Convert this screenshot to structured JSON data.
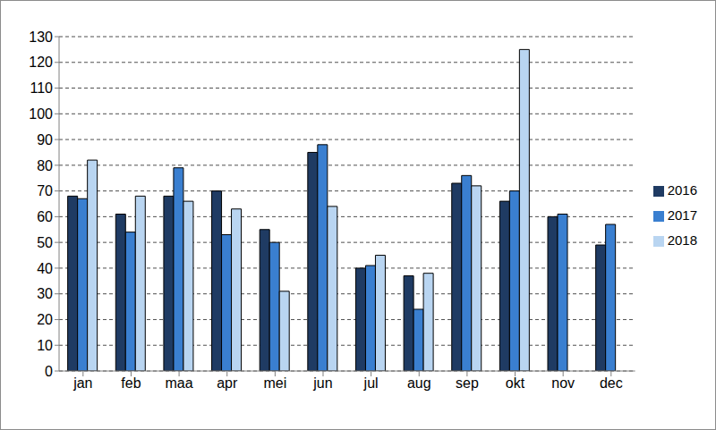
{
  "chart_data": {
    "type": "bar",
    "categories": [
      "jan",
      "feb",
      "maa",
      "apr",
      "mei",
      "jun",
      "jul",
      "aug",
      "sep",
      "okt",
      "nov",
      "dec"
    ],
    "series": [
      {
        "name": "2016",
        "color": "#1f3b63",
        "values": [
          68,
          61,
          68,
          70,
          55,
          85,
          40,
          37,
          73,
          66,
          60,
          49
        ]
      },
      {
        "name": "2017",
        "color": "#3a7fd0",
        "values": [
          67,
          54,
          79,
          53,
          50,
          88,
          41,
          24,
          76,
          70,
          61,
          57
        ]
      },
      {
        "name": "2018",
        "color": "#b9d5f1",
        "values": [
          82,
          68,
          66,
          63,
          31,
          64,
          45,
          38,
          72,
          125,
          null,
          null
        ]
      }
    ],
    "ylim": [
      0,
      130
    ],
    "yticks": [
      0,
      10,
      20,
      30,
      40,
      50,
      60,
      70,
      80,
      90,
      100,
      110,
      120,
      130
    ],
    "grid": true,
    "legend": "right"
  }
}
